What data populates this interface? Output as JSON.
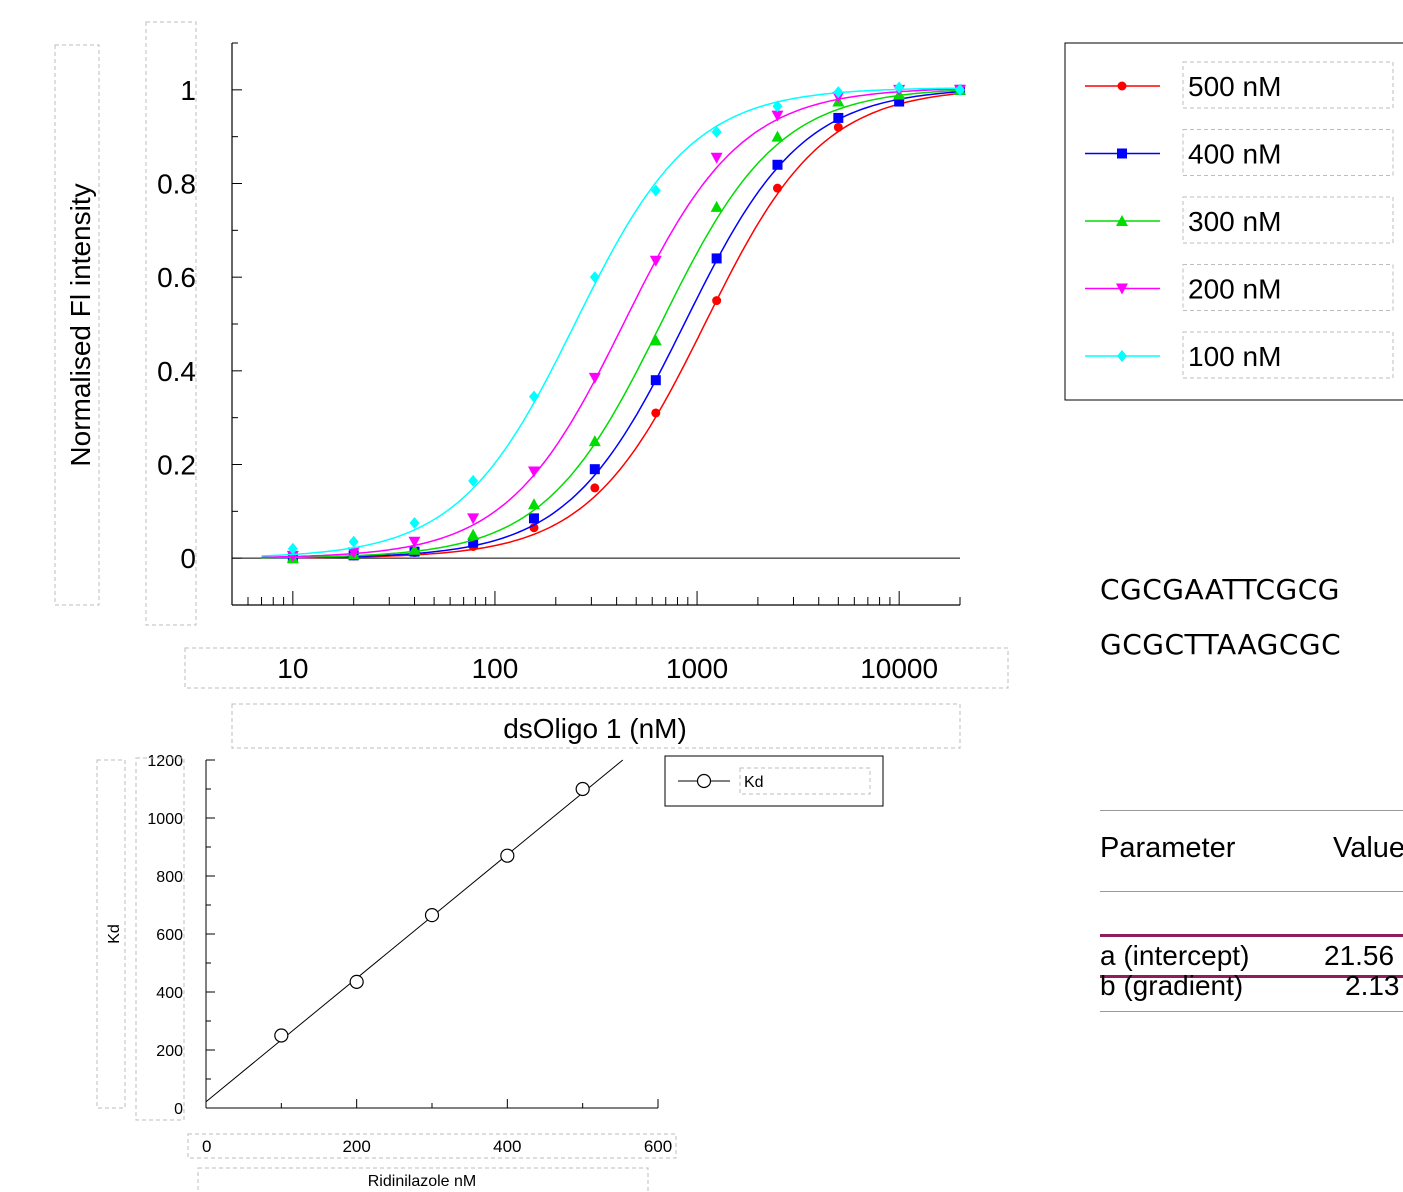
{
  "chart_data": [
    {
      "type": "line",
      "title": "",
      "xlabel": "dsOligo 1 (nM)",
      "ylabel": "Normalised Fl intensity",
      "xscale": "log",
      "xlim": [
        5,
        20000
      ],
      "ylim": [
        -0.1,
        1.1
      ],
      "x_ticks": [
        10,
        100,
        1000,
        10000
      ],
      "x_tick_labels": [
        "10",
        "100",
        "1000",
        "10000"
      ],
      "y_ticks": [
        0,
        0.2,
        0.4,
        0.6,
        0.8,
        1
      ],
      "y_tick_labels": [
        "0",
        "0.2",
        "0.4",
        "0.6",
        "0.8",
        "1"
      ],
      "grid": false,
      "legend_position": "right",
      "x": [
        10,
        20,
        40,
        78,
        156,
        312,
        625,
        1250,
        2500,
        5000,
        10000,
        20000
      ],
      "series": [
        {
          "name": "500 nM",
          "color": "#ff0000",
          "marker": "circle",
          "kd": 1100,
          "hill": 1.5,
          "values": [
            0,
            0.005,
            0.012,
            0.025,
            0.065,
            0.15,
            0.31,
            0.55,
            0.79,
            0.92,
            0.975,
            1.0
          ]
        },
        {
          "name": "400 nM",
          "color": "#0000ff",
          "marker": "square",
          "kd": 870,
          "hill": 1.5,
          "values": [
            0,
            0.006,
            0.014,
            0.033,
            0.085,
            0.19,
            0.38,
            0.64,
            0.84,
            0.94,
            0.975,
            1.0
          ]
        },
        {
          "name": "300 nM",
          "color": "#00dd00",
          "marker": "triangle-up",
          "kd": 665,
          "hill": 1.5,
          "values": [
            0,
            0.008,
            0.018,
            0.05,
            0.115,
            0.25,
            0.465,
            0.75,
            0.9,
            0.975,
            0.99,
            1.0
          ]
        },
        {
          "name": "200 nM",
          "color": "#ff00ff",
          "marker": "triangle-down",
          "kd": 435,
          "hill": 1.5,
          "values": [
            0.005,
            0.012,
            0.035,
            0.085,
            0.185,
            0.385,
            0.635,
            0.855,
            0.945,
            0.985,
            1.0,
            1.0
          ]
        },
        {
          "name": "100 nM",
          "color": "#00ffff",
          "marker": "diamond",
          "kd": 250,
          "hill": 1.5,
          "values": [
            0.02,
            0.035,
            0.075,
            0.165,
            0.345,
            0.6,
            0.785,
            0.91,
            0.965,
            0.995,
            1.005,
            1.0
          ]
        }
      ]
    },
    {
      "type": "line",
      "title": "",
      "xlabel": "Ridinilazole nM",
      "ylabel": "Kd",
      "xlim": [
        0,
        600
      ],
      "ylim": [
        0,
        1200
      ],
      "x_ticks": [
        0,
        200,
        400,
        600
      ],
      "x_tick_labels": [
        "0",
        "200",
        "400",
        "600"
      ],
      "y_ticks": [
        0,
        200,
        400,
        600,
        800,
        1000,
        1200
      ],
      "y_tick_labels": [
        "0",
        "200",
        "400",
        "600",
        "800",
        "1000",
        "1200"
      ],
      "grid": false,
      "legend_position": "top-right",
      "series": [
        {
          "name": "Kd",
          "color": "#000000",
          "marker": "open-circle",
          "x": [
            100,
            200,
            300,
            400,
            500
          ],
          "values": [
            250,
            435,
            665,
            870,
            1100
          ]
        }
      ],
      "fit_line": {
        "intercept": 21.56,
        "gradient": 2.13
      }
    }
  ],
  "sequence": {
    "top_strand": "CGCGAATTCGCG",
    "bottom_strand": "GCGCTTAAGCGC"
  },
  "parameters_table": {
    "header": {
      "parameter": "Parameter",
      "value": "Value"
    },
    "rows": [
      {
        "parameter": "a (intercept)",
        "value": "21.56",
        "highlighted": true
      },
      {
        "parameter": "b (gradient)",
        "value": "2.13",
        "highlighted": false
      }
    ],
    "highlight_color": "#8f1d5c"
  }
}
